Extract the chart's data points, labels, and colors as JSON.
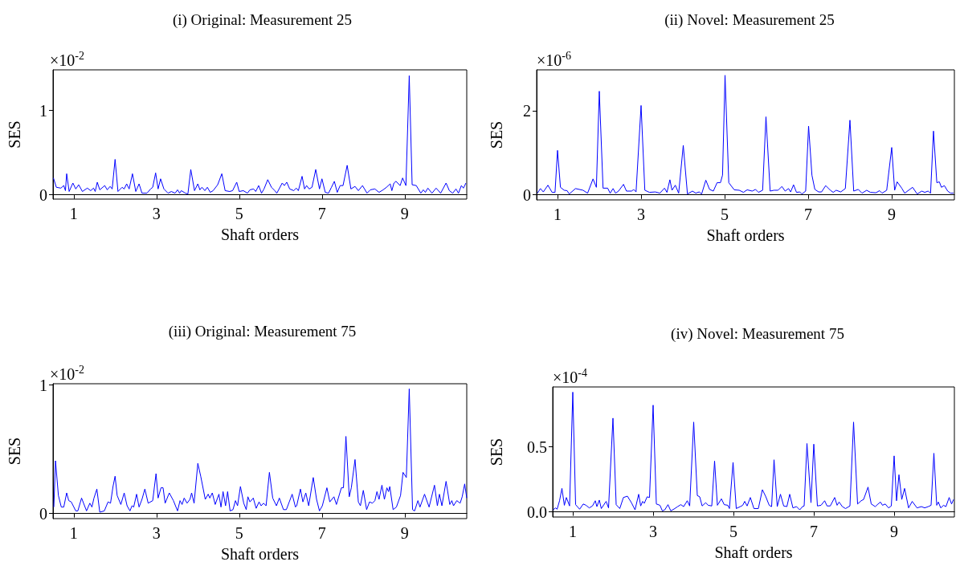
{
  "chart_data": [
    {
      "type": "line",
      "title": "(i) Original: Measurement 25",
      "xlabel": "Shaft orders",
      "ylabel": "SES",
      "annotations": [
        "×10$^{-2}$"
      ],
      "color": "#0000ff",
      "xlim": [
        0.5,
        10.5
      ],
      "xticks": [
        1,
        3,
        5,
        7,
        9
      ],
      "ylim": [
        -0.05,
        1.48
      ],
      "yticks": [
        0,
        1
      ],
      "x": [
        0.51,
        0.58,
        0.69,
        0.76,
        0.8,
        0.83,
        0.89,
        0.98,
        1.05,
        1.12,
        1.21,
        1.33,
        1.41,
        1.48,
        1.52,
        1.57,
        1.63,
        1.75,
        1.81,
        1.88,
        1.93,
        2.0,
        2.07,
        2.17,
        2.22,
        2.28,
        2.34,
        2.42,
        2.5,
        2.58,
        2.65,
        2.77,
        2.86,
        2.91,
        2.98,
        3.04,
        3.1,
        3.18,
        3.28,
        3.36,
        3.45,
        3.51,
        3.56,
        3.6,
        3.7,
        3.76,
        3.83,
        3.92,
        4.0,
        4.05,
        4.1,
        4.17,
        4.23,
        4.3,
        4.37,
        4.48,
        4.58,
        4.66,
        4.77,
        4.84,
        4.94,
        5.0,
        5.1,
        5.2,
        5.26,
        5.35,
        5.4,
        5.47,
        5.54,
        5.6,
        5.69,
        5.78,
        5.86,
        5.91,
        6.04,
        6.09,
        6.15,
        6.22,
        6.32,
        6.38,
        6.43,
        6.52,
        6.58,
        6.63,
        6.69,
        6.76,
        6.85,
        6.94,
        7.0,
        7.08,
        7.16,
        7.23,
        7.3,
        7.37,
        7.44,
        7.51,
        7.61,
        7.7,
        7.8,
        7.88,
        7.98,
        8.09,
        8.17,
        8.28,
        8.38,
        8.48,
        8.56,
        8.65,
        8.69,
        8.74,
        8.79,
        8.83,
        8.89,
        8.95,
        9.03,
        9.11,
        9.18,
        9.28,
        9.39,
        9.45,
        9.5,
        9.56,
        9.66,
        9.76,
        9.87,
        10.0,
        10.08,
        10.16,
        10.24,
        10.3,
        10.37,
        10.42,
        10.48
      ],
      "values": [
        0.2,
        0.09,
        0.08,
        0.11,
        0.05,
        0.25,
        0.04,
        0.14,
        0.07,
        0.12,
        0.04,
        0.08,
        0.05,
        0.08,
        0.04,
        0.15,
        0.06,
        0.11,
        0.06,
        0.1,
        0.07,
        0.42,
        0.04,
        0.09,
        0.07,
        0.13,
        0.07,
        0.25,
        0.04,
        0.13,
        0.02,
        0.02,
        0.07,
        0.09,
        0.26,
        0.07,
        0.19,
        0.07,
        0.02,
        0.04,
        0.02,
        0.06,
        0.02,
        0.05,
        0.02,
        0.01,
        0.3,
        0.05,
        0.13,
        0.06,
        0.09,
        0.05,
        0.09,
        0.03,
        0.05,
        0.12,
        0.25,
        0.05,
        0.04,
        0.05,
        0.15,
        0.04,
        0.05,
        0.02,
        0.06,
        0.07,
        0.04,
        0.11,
        0.02,
        0.07,
        0.18,
        0.09,
        0.05,
        0.02,
        0.14,
        0.11,
        0.15,
        0.07,
        0.05,
        0.08,
        0.05,
        0.22,
        0.07,
        0.11,
        0.07,
        0.09,
        0.3,
        0.07,
        0.19,
        0.03,
        0.02,
        0.09,
        0.16,
        0.03,
        0.11,
        0.11,
        0.35,
        0.07,
        0.1,
        0.05,
        0.11,
        0.02,
        0.06,
        0.07,
        0.03,
        0.06,
        0.09,
        0.13,
        0.05,
        0.14,
        0.16,
        0.14,
        0.11,
        0.2,
        0.11,
        1.41,
        0.12,
        0.11,
        0.02,
        0.06,
        0.03,
        0.08,
        0.02,
        0.08,
        0.02,
        0.14,
        0.05,
        0.02,
        0.07,
        0.02,
        0.11,
        0.08,
        0.14
      ]
    },
    {
      "type": "line",
      "title": "(ii) Novel: Measurement 25",
      "xlabel": "Shaft orders",
      "ylabel": "SES",
      "annotations": [
        "×10$^{-6}$"
      ],
      "color": "#0000ff",
      "xlim": [
        0.5,
        10.5
      ],
      "xticks": [
        1,
        3,
        5,
        7,
        9
      ],
      "ylim": [
        -0.12,
        2.98
      ],
      "yticks": [
        0,
        2
      ],
      "x": [
        0.52,
        0.59,
        0.66,
        0.77,
        0.87,
        0.94,
        1.0,
        1.07,
        1.16,
        1.23,
        1.28,
        1.43,
        1.61,
        1.72,
        1.85,
        1.93,
        2.0,
        2.09,
        2.2,
        2.26,
        2.33,
        2.39,
        2.46,
        2.58,
        2.65,
        2.78,
        2.82,
        2.88,
        3.0,
        3.09,
        3.2,
        3.34,
        3.45,
        3.56,
        3.62,
        3.69,
        3.74,
        3.82,
        3.9,
        4.01,
        4.11,
        4.23,
        4.31,
        4.39,
        4.45,
        4.55,
        4.64,
        4.73,
        4.82,
        4.9,
        4.95,
        5.01,
        5.1,
        5.23,
        5.35,
        5.45,
        5.54,
        5.66,
        5.74,
        5.81,
        5.91,
        5.99,
        6.09,
        6.18,
        6.28,
        6.37,
        6.45,
        6.53,
        6.58,
        6.65,
        6.72,
        6.8,
        6.85,
        6.94,
        7.01,
        7.09,
        7.16,
        7.25,
        7.32,
        7.42,
        7.53,
        7.6,
        7.67,
        7.78,
        7.89,
        8.0,
        8.09,
        8.2,
        8.29,
        8.4,
        8.49,
        8.62,
        8.71,
        8.77,
        8.88,
        9.0,
        9.07,
        9.13,
        9.24,
        9.31,
        9.5,
        9.61,
        9.72,
        9.79,
        9.87,
        9.93,
        10.0,
        10.08,
        10.14,
        10.19,
        10.26,
        10.34,
        10.41,
        10.48
      ],
      "values": [
        0.04,
        0.15,
        0.07,
        0.23,
        0.06,
        0.06,
        1.06,
        0.18,
        0.11,
        0.1,
        0.02,
        0.15,
        0.11,
        0.04,
        0.38,
        0.18,
        2.47,
        0.16,
        0.16,
        0.04,
        0.15,
        0.04,
        0.09,
        0.25,
        0.09,
        0.09,
        0.13,
        0.07,
        2.13,
        0.11,
        0.06,
        0.07,
        0.04,
        0.16,
        0.06,
        0.36,
        0.11,
        0.23,
        0.04,
        1.18,
        0.02,
        0.09,
        0.04,
        0.07,
        0.02,
        0.35,
        0.13,
        0.09,
        0.29,
        0.29,
        0.47,
        2.85,
        0.29,
        0.12,
        0.11,
        0.06,
        0.12,
        0.09,
        0.13,
        0.06,
        0.11,
        1.86,
        0.09,
        0.11,
        0.11,
        0.2,
        0.09,
        0.15,
        0.07,
        0.24,
        0.06,
        0.07,
        0.02,
        0.09,
        1.64,
        0.47,
        0.13,
        0.07,
        0.07,
        0.22,
        0.11,
        0.06,
        0.11,
        0.07,
        0.15,
        1.78,
        0.09,
        0.13,
        0.04,
        0.11,
        0.06,
        0.05,
        0.1,
        0.04,
        0.11,
        1.13,
        0.11,
        0.31,
        0.16,
        0.04,
        0.18,
        0.02,
        0.09,
        0.06,
        0.09,
        0.04,
        1.52,
        0.29,
        0.31,
        0.18,
        0.22,
        0.09,
        0.04,
        0.04
      ]
    },
    {
      "type": "line",
      "title": "(iii) Original: Measurement 75",
      "xlabel": "Shaft orders",
      "ylabel": "SES",
      "annotations": [
        "×10$^{-2}$"
      ],
      "color": "#0000ff",
      "xlim": [
        0.5,
        10.5
      ],
      "xticks": [
        1,
        3,
        5,
        7,
        9
      ],
      "ylim": [
        -0.04,
        1.01
      ],
      "yticks": [
        0,
        1
      ],
      "x": [
        0.52,
        0.56,
        0.63,
        0.7,
        0.76,
        0.83,
        0.88,
        0.94,
        1.05,
        1.1,
        1.19,
        1.31,
        1.39,
        1.44,
        1.49,
        1.56,
        1.63,
        1.74,
        1.83,
        1.89,
        1.95,
        2.0,
        2.05,
        2.14,
        2.22,
        2.29,
        2.36,
        2.41,
        2.45,
        2.52,
        2.58,
        2.65,
        2.72,
        2.8,
        2.91,
        2.99,
        3.04,
        3.11,
        3.16,
        3.21,
        3.31,
        3.41,
        3.51,
        3.57,
        3.62,
        3.67,
        3.74,
        3.81,
        3.85,
        3.91,
        4.0,
        4.07,
        4.18,
        4.25,
        4.29,
        4.35,
        4.42,
        4.51,
        4.56,
        4.61,
        4.67,
        4.72,
        4.78,
        4.85,
        4.91,
        4.96,
        5.03,
        5.11,
        5.17,
        5.21,
        5.26,
        5.34,
        5.41,
        5.48,
        5.53,
        5.59,
        5.65,
        5.73,
        5.81,
        5.9,
        5.97,
        6.07,
        6.14,
        6.21,
        6.28,
        6.36,
        6.39,
        6.48,
        6.54,
        6.61,
        6.68,
        6.79,
        6.87,
        6.94,
        7.01,
        7.12,
        7.19,
        7.29,
        7.35,
        7.47,
        7.52,
        7.58,
        7.66,
        7.71,
        7.8,
        7.88,
        7.93,
        8.0,
        8.08,
        8.15,
        8.22,
        8.28,
        8.33,
        8.38,
        8.45,
        8.51,
        8.57,
        8.61,
        8.64,
        8.72,
        8.8,
        8.9,
        8.96,
        9.04,
        9.11,
        9.19,
        9.24,
        9.32,
        9.37,
        9.48,
        9.59,
        9.72,
        9.79,
        9.84,
        9.9,
        10.0,
        10.09,
        10.14,
        10.18,
        10.26,
        10.34,
        10.39,
        10.45,
        10.5
      ],
      "values": [
        0.05,
        0.41,
        0.14,
        0.05,
        0.05,
        0.16,
        0.1,
        0.09,
        0.02,
        0.02,
        0.12,
        0.02,
        0.08,
        0.05,
        0.12,
        0.19,
        0.01,
        0.02,
        0.09,
        0.08,
        0.21,
        0.29,
        0.14,
        0.07,
        0.16,
        0.06,
        0.02,
        0.06,
        0.05,
        0.15,
        0.05,
        0.11,
        0.19,
        0.08,
        0.1,
        0.31,
        0.12,
        0.2,
        0.2,
        0.08,
        0.16,
        0.1,
        0.02,
        0.1,
        0.07,
        0.12,
        0.08,
        0.11,
        0.16,
        0.08,
        0.39,
        0.29,
        0.11,
        0.15,
        0.12,
        0.16,
        0.07,
        0.15,
        0.05,
        0.17,
        0.06,
        0.17,
        0.02,
        0.03,
        0.1,
        0.06,
        0.21,
        0.08,
        0.03,
        0.13,
        0.09,
        0.12,
        0.04,
        0.09,
        0.06,
        0.08,
        0.06,
        0.32,
        0.12,
        0.06,
        0.12,
        0.03,
        0.03,
        0.09,
        0.15,
        0.05,
        0.06,
        0.19,
        0.09,
        0.16,
        0.06,
        0.28,
        0.11,
        0.02,
        0.06,
        0.2,
        0.09,
        0.13,
        0.07,
        0.2,
        0.2,
        0.6,
        0.13,
        0.2,
        0.42,
        0.09,
        0.06,
        0.18,
        0.03,
        0.09,
        0.08,
        0.1,
        0.17,
        0.11,
        0.22,
        0.11,
        0.2,
        0.17,
        0.21,
        0.03,
        0.05,
        0.14,
        0.32,
        0.28,
        0.97,
        0.03,
        0.02,
        0.1,
        0.05,
        0.15,
        0.05,
        0.22,
        0.06,
        0.15,
        0.06,
        0.25,
        0.07,
        0.1,
        0.06,
        0.1,
        0.08,
        0.13,
        0.23,
        0.12
      ]
    },
    {
      "type": "line",
      "title": "(iv) Novel: Measurement 75",
      "xlabel": "Shaft orders",
      "ylabel": "SES",
      "annotations": [
        "×10$^{-4}$"
      ],
      "color": "#0000ff",
      "xlim": [
        0.5,
        10.5
      ],
      "xticks": [
        1,
        3,
        5,
        7,
        9
      ],
      "ylim": [
        -0.04,
        0.96
      ],
      "yticks": [
        {
          "value": 0,
          "label": "0.0"
        },
        0.5
      ],
      "x": [
        0.51,
        0.57,
        0.61,
        0.67,
        0.73,
        0.79,
        0.84,
        0.92,
        1.0,
        1.07,
        1.17,
        1.26,
        1.33,
        1.41,
        1.49,
        1.56,
        1.6,
        1.66,
        1.71,
        1.83,
        1.89,
        2.0,
        2.08,
        2.17,
        2.26,
        2.36,
        2.46,
        2.55,
        2.64,
        2.69,
        2.74,
        2.78,
        2.85,
        2.91,
        3.0,
        3.08,
        3.17,
        3.23,
        3.29,
        3.37,
        3.44,
        3.54,
        3.61,
        3.69,
        3.76,
        3.85,
        3.91,
        4.01,
        4.1,
        4.16,
        4.22,
        4.31,
        4.37,
        4.46,
        4.53,
        4.6,
        4.7,
        4.77,
        4.86,
        4.9,
        4.99,
        5.07,
        5.17,
        5.23,
        5.28,
        5.34,
        5.42,
        5.51,
        5.62,
        5.72,
        5.8,
        5.89,
        5.95,
        6.01,
        6.09,
        6.17,
        6.25,
        6.33,
        6.4,
        6.48,
        6.57,
        6.65,
        6.72,
        6.76,
        6.83,
        6.93,
        7.0,
        7.09,
        7.18,
        7.27,
        7.33,
        7.41,
        7.52,
        7.58,
        7.63,
        7.71,
        7.79,
        7.9,
        7.99,
        8.09,
        8.18,
        8.24,
        8.35,
        8.43,
        8.53,
        8.6,
        8.66,
        8.71,
        8.78,
        8.86,
        8.93,
        9.0,
        9.06,
        9.12,
        9.19,
        9.26,
        9.36,
        9.45,
        9.57,
        9.68,
        9.76,
        9.85,
        9.92,
        9.99,
        10.06,
        10.1,
        10.16,
        10.23,
        10.29,
        10.37,
        10.43,
        10.48
      ],
      "values": [
        0.015,
        0.03,
        0.02,
        0.085,
        0.18,
        0.05,
        0.11,
        0.045,
        0.92,
        0.055,
        0.02,
        0.06,
        0.05,
        0.03,
        0.045,
        0.085,
        0.04,
        0.09,
        0.025,
        0.08,
        0.03,
        0.72,
        0.055,
        0.025,
        0.11,
        0.12,
        0.07,
        0.015,
        0.135,
        0.045,
        0.08,
        0.065,
        0.115,
        0.11,
        0.82,
        0.06,
        0.05,
        0.007,
        0.015,
        0.055,
        0.007,
        0.025,
        0.04,
        0.055,
        0.04,
        0.085,
        0.045,
        0.69,
        0.125,
        0.115,
        0.045,
        0.07,
        0.05,
        0.045,
        0.39,
        0.05,
        0.1,
        0.055,
        0.05,
        0.025,
        0.38,
        0.025,
        0.04,
        0.05,
        0.08,
        0.045,
        0.11,
        0.025,
        0.025,
        0.17,
        0.12,
        0.05,
        0.04,
        0.4,
        0.04,
        0.135,
        0.045,
        0.04,
        0.135,
        0.03,
        0.04,
        0.015,
        0.04,
        0.045,
        0.525,
        0.07,
        0.52,
        0.045,
        0.05,
        0.085,
        0.045,
        0.045,
        0.11,
        0.05,
        0.075,
        0.04,
        0.025,
        0.045,
        0.69,
        0.06,
        0.085,
        0.095,
        0.19,
        0.06,
        0.04,
        0.06,
        0.075,
        0.05,
        0.06,
        0.03,
        0.045,
        0.43,
        0.085,
        0.285,
        0.095,
        0.18,
        0.03,
        0.08,
        0.03,
        0.04,
        0.03,
        0.04,
        0.05,
        0.45,
        0.05,
        0.075,
        0.03,
        0.05,
        0.04,
        0.11,
        0.06,
        0.095
      ]
    }
  ]
}
